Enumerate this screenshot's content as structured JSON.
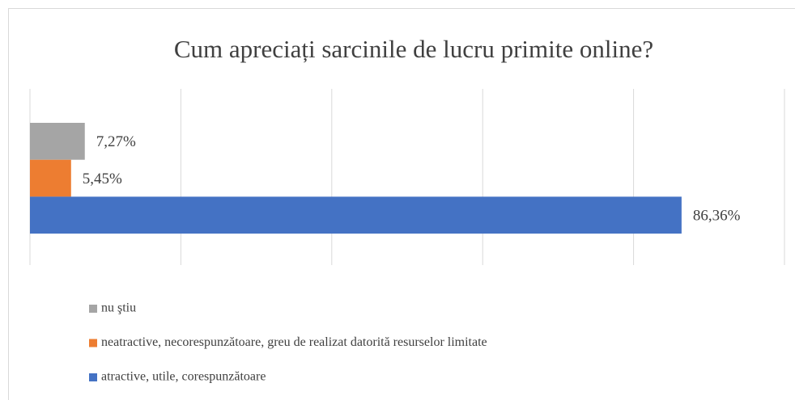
{
  "chart_data": {
    "type": "hbar",
    "title": "Cum apreciați sarcinile de lucru primite online?",
    "series": [
      {
        "name": "nu ştiu",
        "color": "#a5a5a5",
        "values": [
          7.27
        ],
        "value_labels": [
          "7,27%"
        ]
      },
      {
        "name": "neatractive, necorespunzătoare, greu de realizat datorită resurselor limitate",
        "color": "#ed7d31",
        "values": [
          5.45
        ],
        "value_labels": [
          "5,45%"
        ]
      },
      {
        "name": "atractive, utile, corespunzătoare",
        "color": "#4472c4",
        "values": [
          86.36
        ],
        "value_labels": [
          "86,36%"
        ]
      }
    ],
    "xlim": [
      0,
      100
    ],
    "xticks": [
      0,
      20,
      40,
      60,
      80,
      100
    ],
    "grid": true,
    "legend": "bottom"
  }
}
